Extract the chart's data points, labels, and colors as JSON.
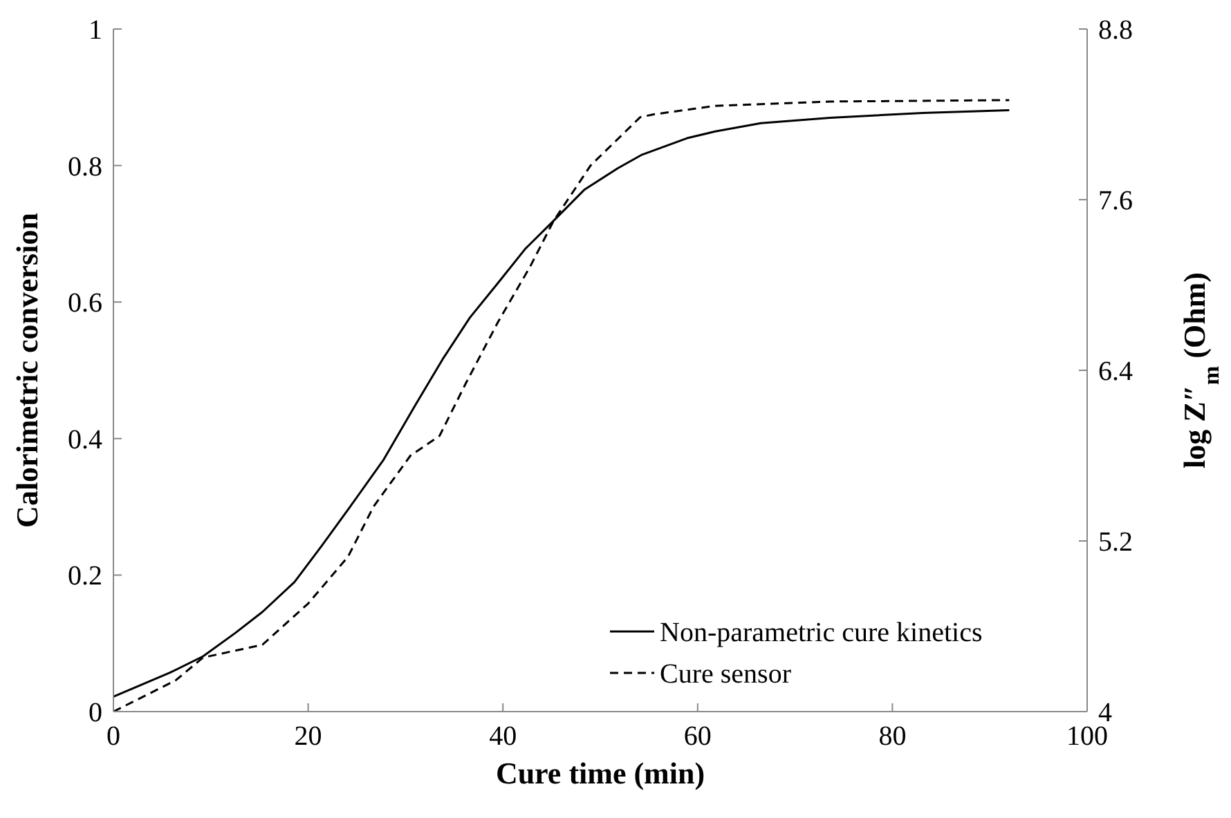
{
  "chart_data": {
    "type": "line",
    "xlabel": "Cure time (min)",
    "ylabel": "Calorimetric conversion",
    "y2label": "log Z″$_{m}$ (Ohm)",
    "xlim": [
      0,
      100
    ],
    "xticks": [
      0,
      20,
      40,
      60,
      80,
      100
    ],
    "ylim": [
      0,
      1
    ],
    "yticks": [
      0,
      0.2,
      0.4,
      0.6,
      0.8,
      1
    ],
    "y2lim": [
      4,
      8.8
    ],
    "y2ticks": [
      4,
      5.2,
      6.4,
      7.6,
      8.8
    ],
    "legend": "bottom right",
    "grid": false,
    "series": [
      {
        "name": "Non-parametric cure kinetics",
        "color": "#000000",
        "line_style": "solid",
        "x": [
          0,
          5.8,
          9.2,
          12.5,
          15.3,
          18.6,
          21.4,
          24.3,
          27.7,
          31,
          33.8,
          36.6,
          39.5,
          42.3,
          45.2,
          48.4,
          51.8,
          54.3,
          58.9,
          61.8,
          66.5,
          73.6,
          83.1,
          92
        ],
        "values": [
          0.022,
          0.057,
          0.081,
          0.115,
          0.146,
          0.19,
          0.243,
          0.3,
          0.368,
          0.449,
          0.516,
          0.577,
          0.628,
          0.678,
          0.719,
          0.765,
          0.796,
          0.816,
          0.84,
          0.85,
          0.862,
          0.87,
          0.877,
          0.881
        ]
      },
      {
        "name": "Cure sensor",
        "color": "#000000",
        "line_style": "dashed",
        "axis": "y2",
        "x": [
          0,
          6.4,
          9.2,
          15.3,
          20,
          24.1,
          26.7,
          30.5,
          33.5,
          36.2,
          39.5,
          42.8,
          45.2,
          49,
          54.1,
          55.5,
          61.8,
          73.6,
          92
        ],
        "values": [
          4.0,
          4.22,
          4.38,
          4.47,
          4.76,
          5.09,
          5.44,
          5.8,
          5.94,
          6.31,
          6.74,
          7.13,
          7.45,
          7.84,
          8.18,
          8.2,
          8.26,
          8.29,
          8.3
        ]
      }
    ]
  }
}
